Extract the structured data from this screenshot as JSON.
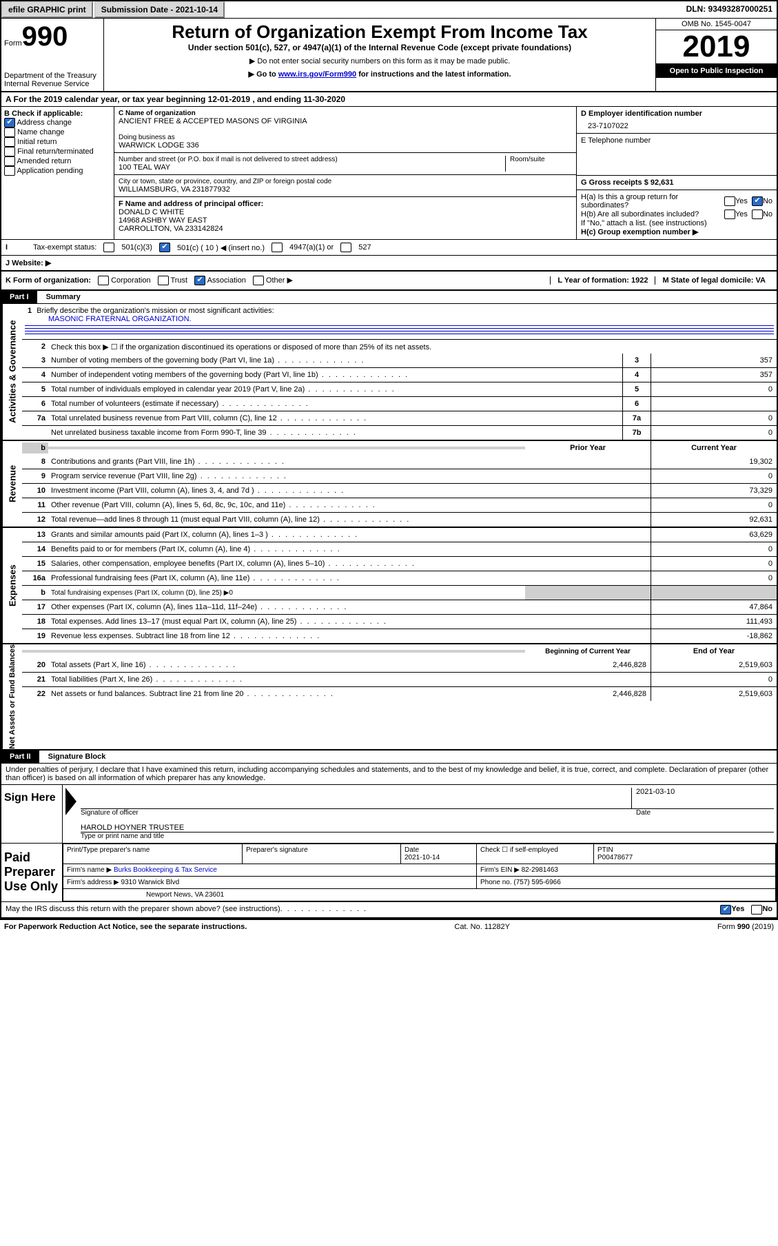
{
  "top": {
    "efile": "efile GRAPHIC print",
    "submission": "Submission Date - 2021-10-14",
    "dln": "DLN: 93493287000251"
  },
  "header": {
    "form_word": "Form",
    "form_num": "990",
    "dept": "Department of the Treasury\nInternal Revenue Service",
    "title": "Return of Organization Exempt From Income Tax",
    "sub1": "Under section 501(c), 527, or 4947(a)(1) of the Internal Revenue Code (except private foundations)",
    "sub2": "▶ Do not enter social security numbers on this form as it may be made public.",
    "sub3_pre": "▶ Go to ",
    "sub3_link": "www.irs.gov/Form990",
    "sub3_post": " for instructions and the latest information.",
    "omb": "OMB No. 1545-0047",
    "year": "2019",
    "open": "Open to Public Inspection"
  },
  "A": {
    "text": "A For the 2019 calendar year, or tax year beginning 12-01-2019    , and ending 11-30-2020"
  },
  "B": {
    "label": "B Check if applicable:",
    "items": [
      "Address change",
      "Name change",
      "Initial return",
      "Final return/terminated",
      "Amended return",
      "Application pending"
    ],
    "checked_index": 0
  },
  "C": {
    "name_label": "C Name of organization",
    "name": "ANCIENT FREE & ACCEPTED MASONS OF VIRGINIA",
    "dba_label": "Doing business as",
    "dba": "WARWICK LODGE 336",
    "addr_label": "Number and street (or P.O. box if mail is not delivered to street address)",
    "room_label": "Room/suite",
    "addr": "100 TEAL WAY",
    "city_label": "City or town, state or province, country, and ZIP or foreign postal code",
    "city": "WILLIAMSBURG, VA  231877932",
    "F_label": "F Name and address of principal officer:",
    "F_name": "DONALD C WHITE",
    "F_addr1": "14968 ASHBY WAY EAST",
    "F_addr2": "CARROLLTON, VA  233142824"
  },
  "D": {
    "label": "D Employer identification number",
    "ein": "23-7107022",
    "E_label": "E Telephone number",
    "G_label": "G Gross receipts $ 92,631"
  },
  "H": {
    "a": "H(a)  Is this a group return for subordinates?",
    "b": "H(b)  Are all subordinates included?",
    "b_note": "If \"No,\" attach a list. (see instructions)",
    "c": "H(c)  Group exemption number ▶",
    "yes": "Yes",
    "no": "No"
  },
  "I": {
    "label": "Tax-exempt status:",
    "opts": [
      "501(c)(3)",
      "501(c) ( 10 ) ◀ (insert no.)",
      "4947(a)(1) or",
      "527"
    ],
    "checked": 1
  },
  "J": {
    "label": "J    Website: ▶"
  },
  "K": {
    "label": "K Form of organization:",
    "opts": [
      "Corporation",
      "Trust",
      "Association",
      "Other ▶"
    ],
    "checked": 2,
    "L": "L Year of formation: 1922",
    "M": "M State of legal domicile: VA"
  },
  "part1": {
    "title": "Part I",
    "sub": "Summary",
    "side": "Activities & Governance",
    "l1": "Briefly describe the organization's mission or most significant activities:",
    "l1_val": "MASONIC FRATERNAL ORGANIZATION.",
    "l2": "Check this box ▶ ☐  if the organization discontinued its operations or disposed of more than 25% of its net assets.",
    "rows": [
      {
        "n": "3",
        "t": "Number of voting members of the governing body (Part VI, line 1a)",
        "r": "3",
        "v": "357"
      },
      {
        "n": "4",
        "t": "Number of independent voting members of the governing body (Part VI, line 1b)",
        "r": "4",
        "v": "357"
      },
      {
        "n": "5",
        "t": "Total number of individuals employed in calendar year 2019 (Part V, line 2a)",
        "r": "5",
        "v": "0"
      },
      {
        "n": "6",
        "t": "Total number of volunteers (estimate if necessary)",
        "r": "6",
        "v": ""
      },
      {
        "n": "7a",
        "t": "Total unrelated business revenue from Part VIII, column (C), line 12",
        "r": "7a",
        "v": "0"
      },
      {
        "n": "",
        "t": "Net unrelated business taxable income from Form 990-T, line 39",
        "r": "7b",
        "v": "0"
      }
    ]
  },
  "revenue": {
    "side": "Revenue",
    "head_prior": "Prior Year",
    "head_curr": "Current Year",
    "rows": [
      {
        "n": "8",
        "t": "Contributions and grants (Part VIII, line 1h)",
        "p": "",
        "c": "19,302"
      },
      {
        "n": "9",
        "t": "Program service revenue (Part VIII, line 2g)",
        "p": "",
        "c": "0"
      },
      {
        "n": "10",
        "t": "Investment income (Part VIII, column (A), lines 3, 4, and 7d )",
        "p": "",
        "c": "73,329"
      },
      {
        "n": "11",
        "t": "Other revenue (Part VIII, column (A), lines 5, 6d, 8c, 9c, 10c, and 11e)",
        "p": "",
        "c": "0"
      },
      {
        "n": "12",
        "t": "Total revenue—add lines 8 through 11 (must equal Part VIII, column (A), line 12)",
        "p": "",
        "c": "92,631"
      }
    ]
  },
  "expenses": {
    "side": "Expenses",
    "rows": [
      {
        "n": "13",
        "t": "Grants and similar amounts paid (Part IX, column (A), lines 1–3 )",
        "p": "",
        "c": "63,629"
      },
      {
        "n": "14",
        "t": "Benefits paid to or for members (Part IX, column (A), line 4)",
        "p": "",
        "c": "0"
      },
      {
        "n": "15",
        "t": "Salaries, other compensation, employee benefits (Part IX, column (A), lines 5–10)",
        "p": "",
        "c": "0"
      },
      {
        "n": "16a",
        "t": "Professional fundraising fees (Part IX, column (A), line 11e)",
        "p": "",
        "c": "0"
      },
      {
        "n": "b",
        "t": "Total fundraising expenses (Part IX, column (D), line 25) ▶0",
        "p": "shade",
        "c": "shade"
      },
      {
        "n": "17",
        "t": "Other expenses (Part IX, column (A), lines 11a–11d, 11f–24e)",
        "p": "",
        "c": "47,864"
      },
      {
        "n": "18",
        "t": "Total expenses. Add lines 13–17 (must equal Part IX, column (A), line 25)",
        "p": "",
        "c": "111,493"
      },
      {
        "n": "19",
        "t": "Revenue less expenses. Subtract line 18 from line 12",
        "p": "",
        "c": "-18,862"
      }
    ]
  },
  "net": {
    "side": "Net Assets or Fund Balances",
    "head_begin": "Beginning of Current Year",
    "head_end": "End of Year",
    "rows": [
      {
        "n": "20",
        "t": "Total assets (Part X, line 16)",
        "p": "2,446,828",
        "c": "2,519,603"
      },
      {
        "n": "21",
        "t": "Total liabilities (Part X, line 26)",
        "p": "",
        "c": "0"
      },
      {
        "n": "22",
        "t": "Net assets or fund balances. Subtract line 21 from line 20",
        "p": "2,446,828",
        "c": "2,519,603"
      }
    ]
  },
  "part2": {
    "title": "Part II",
    "sub": "Signature Block",
    "decl": "Under penalties of perjury, I declare that I have examined this return, including accompanying schedules and statements, and to the best of my knowledge and belief, it is true, correct, and complete. Declaration of preparer (other than officer) is based on all information of which preparer has any knowledge."
  },
  "sign": {
    "label": "Sign Here",
    "sig_of": "Signature of officer",
    "date": "2021-03-10",
    "date_lbl": "Date",
    "name": "HAROLD HOYNER  TRUSTEE",
    "type_lbl": "Type or print name and title"
  },
  "paid": {
    "label": "Paid Preparer Use Only",
    "h1": "Print/Type preparer's name",
    "h2": "Preparer's signature",
    "h3": "Date",
    "h3v": "2021-10-14",
    "h4": "Check ☐  if self-employed",
    "h5": "PTIN",
    "h5v": "P00478677",
    "firm_name_lbl": "Firm's name    ▶",
    "firm_name": "Burks Bookkeeping & Tax Service",
    "firm_ein_lbl": "Firm's EIN ▶",
    "firm_ein": "82-2981463",
    "firm_addr_lbl": "Firm's address ▶",
    "firm_addr1": "9310 Warwick Blvd",
    "firm_addr2": "Newport News, VA  23601",
    "phone_lbl": "Phone no.",
    "phone": "(757) 595-6966"
  },
  "footer": {
    "irs_q": "May the IRS discuss this return with the preparer shown above? (see instructions)",
    "yes": "Yes",
    "no": "No",
    "pra": "For Paperwork Reduction Act Notice, see the separate instructions.",
    "cat": "Cat. No. 11282Y",
    "form": "Form 990 (2019)"
  }
}
